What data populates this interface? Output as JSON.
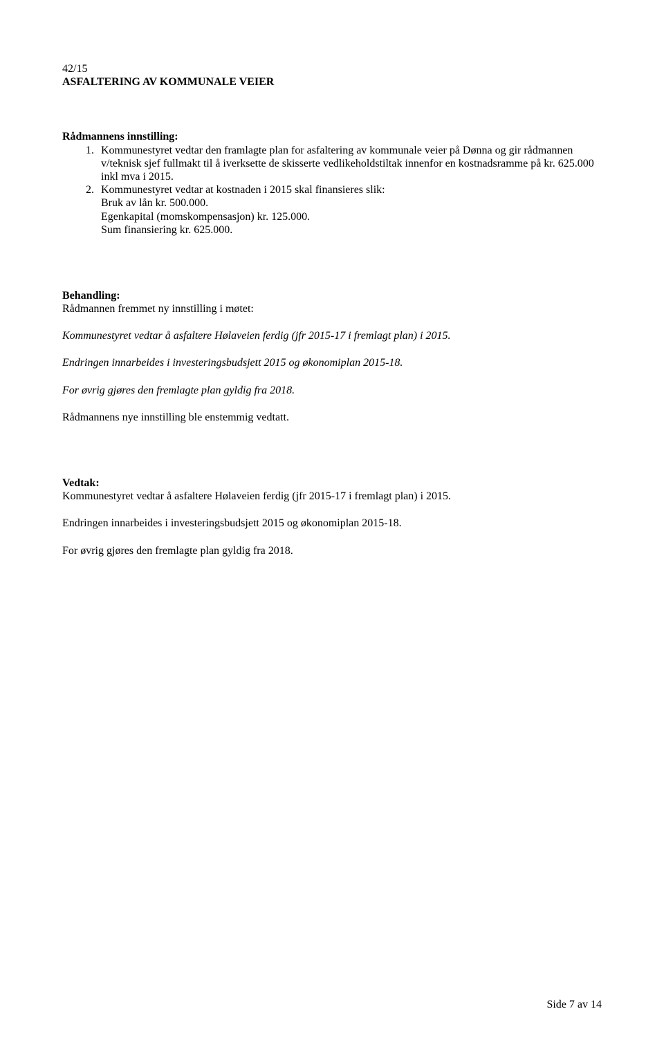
{
  "header": {
    "doc_number": "42/15",
    "title": "ASFALTERING AV KOMMUNALE VEIER"
  },
  "innstilling": {
    "heading": "Rådmannens innstilling:",
    "item1": "Kommunestyret vedtar den framlagte plan for asfaltering av kommunale veier på Dønna og gir rådmannen v/teknisk sjef fullmakt til å iverksette de skisserte vedlikeholdstiltak innenfor en kostnadsramme på kr. 625.000 inkl mva i 2015.",
    "item2": "Kommunestyret vedtar at kostnaden i 2015 skal finansieres slik:",
    "sub1": "Bruk av lån kr. 500.000.",
    "sub2": "Egenkapital (momskompensasjon) kr. 125.000.",
    "sub3": "Sum finansiering kr. 625.000."
  },
  "behandling": {
    "heading": "Behandling:",
    "line1": "Rådmannen fremmet ny innstilling i møtet:",
    "line2": "Kommunestyret vedtar å asfaltere Hølaveien ferdig (jfr 2015-17 i fremlagt plan) i 2015.",
    "line3": "Endringen innarbeides i investeringsbudsjett 2015 og økonomiplan 2015-18.",
    "line4": "For øvrig gjøres den fremlagte plan gyldig fra 2018.",
    "line5": "Rådmannens nye innstilling ble enstemmig vedtatt."
  },
  "vedtak": {
    "heading": "Vedtak:",
    "line1": "Kommunestyret vedtar å asfaltere Hølaveien ferdig (jfr 2015-17 i fremlagt plan) i 2015.",
    "line2": "Endringen innarbeides i investeringsbudsjett 2015 og økonomiplan 2015-18.",
    "line3": "For øvrig gjøres den fremlagte plan gyldig fra 2018."
  },
  "footer": {
    "text": "Side 7 av 14"
  }
}
